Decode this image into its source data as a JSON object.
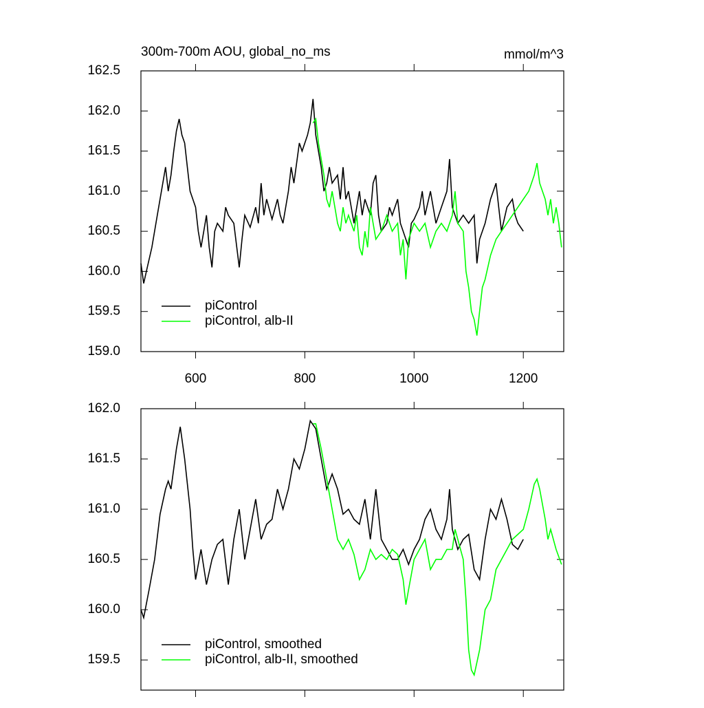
{
  "chart_data": [
    {
      "type": "line",
      "title": "300m-700m AOU, global_no_ms",
      "units": "mmol/m^3",
      "xlim": [
        500,
        1274
      ],
      "xticks": [
        600,
        800,
        1000,
        1200
      ],
      "xtick_labels": true,
      "ylim": [
        159.0,
        162.5
      ],
      "yticks": [
        {
          "value": 159.0,
          "label": "159.0"
        },
        159.5,
        {
          "value": 160.0,
          "label": "160.0"
        },
        160.5,
        {
          "value": 161.0,
          "label": "161.0"
        },
        161.5,
        {
          "value": 162.0,
          "label": "162.0"
        },
        162.5
      ],
      "legend": "lower left",
      "series": [
        {
          "name": "piControl",
          "color": "#000000",
          "x": [
            500,
            505,
            510,
            520,
            530,
            540,
            545,
            550,
            555,
            560,
            565,
            570,
            575,
            580,
            585,
            590,
            595,
            600,
            605,
            610,
            615,
            620,
            625,
            630,
            635,
            640,
            650,
            655,
            660,
            670,
            680,
            685,
            690,
            700,
            710,
            715,
            720,
            725,
            730,
            740,
            750,
            755,
            760,
            770,
            775,
            780,
            790,
            795,
            800,
            805,
            810,
            815,
            820,
            825,
            830,
            835,
            840,
            845,
            850,
            860,
            865,
            870,
            875,
            880,
            890,
            895,
            900,
            905,
            910,
            920,
            925,
            930,
            935,
            940,
            950,
            955,
            960,
            970,
            975,
            980,
            990,
            995,
            1000,
            1010,
            1015,
            1020,
            1030,
            1040,
            1050,
            1060,
            1065,
            1070,
            1080,
            1090,
            1100,
            1110,
            1115,
            1120,
            1130,
            1140,
            1150,
            1155,
            1160,
            1170,
            1180,
            1185,
            1190,
            1200
          ],
          "values": [
            160.1,
            159.85,
            160.0,
            160.3,
            160.7,
            161.1,
            161.3,
            161.0,
            161.2,
            161.5,
            161.75,
            161.9,
            161.7,
            161.6,
            161.3,
            161.0,
            160.9,
            160.8,
            160.5,
            160.3,
            160.5,
            160.7,
            160.3,
            160.05,
            160.5,
            160.6,
            160.5,
            160.8,
            160.7,
            160.6,
            160.05,
            160.4,
            160.7,
            160.55,
            160.8,
            160.6,
            161.1,
            160.7,
            160.9,
            160.65,
            160.9,
            160.7,
            160.6,
            161.0,
            161.3,
            161.1,
            161.6,
            161.5,
            161.6,
            161.7,
            161.85,
            162.15,
            161.7,
            161.5,
            161.3,
            161.0,
            161.1,
            161.3,
            161.1,
            161.2,
            160.9,
            161.3,
            160.9,
            161.0,
            160.6,
            160.8,
            161.0,
            160.7,
            160.9,
            160.7,
            161.1,
            161.2,
            160.7,
            160.5,
            160.6,
            160.8,
            160.7,
            160.9,
            160.6,
            160.5,
            160.3,
            160.6,
            160.65,
            160.8,
            161.0,
            160.7,
            161.0,
            160.6,
            160.8,
            161.0,
            161.4,
            160.8,
            160.6,
            160.7,
            160.6,
            160.7,
            160.1,
            160.4,
            160.6,
            160.9,
            161.1,
            160.8,
            160.5,
            160.8,
            160.9,
            160.7,
            160.6,
            160.5
          ]
        },
        {
          "name": "piControl, alb-II",
          "color": "#00ff00",
          "x": [
            815,
            820,
            825,
            830,
            835,
            840,
            845,
            850,
            855,
            860,
            865,
            870,
            875,
            880,
            890,
            895,
            900,
            905,
            910,
            915,
            920,
            925,
            930,
            940,
            950,
            960,
            970,
            975,
            980,
            985,
            990,
            1000,
            1010,
            1020,
            1030,
            1040,
            1050,
            1060,
            1070,
            1075,
            1080,
            1090,
            1095,
            1100,
            1105,
            1110,
            1115,
            1120,
            1125,
            1130,
            1140,
            1150,
            1160,
            1170,
            1180,
            1190,
            1200,
            1210,
            1215,
            1220,
            1225,
            1230,
            1240,
            1245,
            1250,
            1255,
            1260,
            1265,
            1270
          ],
          "values": [
            161.85,
            161.9,
            161.6,
            161.4,
            161.2,
            160.9,
            160.8,
            161.0,
            160.8,
            160.6,
            160.5,
            160.8,
            160.6,
            160.7,
            160.5,
            160.7,
            160.3,
            160.2,
            160.5,
            160.3,
            160.8,
            160.6,
            160.4,
            160.5,
            160.7,
            160.5,
            160.6,
            160.2,
            160.4,
            159.9,
            160.4,
            160.6,
            160.5,
            160.6,
            160.3,
            160.5,
            160.6,
            160.5,
            160.7,
            161.0,
            160.6,
            160.5,
            160.0,
            159.8,
            159.5,
            159.4,
            159.2,
            159.5,
            159.8,
            159.9,
            160.2,
            160.4,
            160.5,
            160.6,
            160.7,
            160.8,
            160.9,
            161.0,
            161.1,
            161.2,
            161.35,
            161.1,
            160.9,
            160.7,
            160.9,
            160.6,
            160.8,
            160.6,
            160.3
          ]
        }
      ]
    },
    {
      "type": "line",
      "xlim": [
        500,
        1274
      ],
      "xticks": [
        600,
        800,
        1000,
        1200
      ],
      "xtick_labels": false,
      "ylim": [
        159.2,
        162.0
      ],
      "yticks": [
        159.5,
        {
          "value": 160.0,
          "label": "160.0"
        },
        160.5,
        {
          "value": 161.0,
          "label": "161.0"
        },
        161.5,
        {
          "value": 162.0,
          "label": "162.0"
        }
      ],
      "legend": "lower left",
      "series": [
        {
          "name": "piControl, smoothed",
          "color": "#000000",
          "x": [
            500,
            505,
            515,
            525,
            535,
            545,
            550,
            555,
            565,
            572,
            580,
            590,
            595,
            600,
            610,
            620,
            630,
            640,
            650,
            660,
            670,
            680,
            690,
            700,
            710,
            720,
            730,
            740,
            750,
            760,
            770,
            780,
            790,
            800,
            810,
            820,
            830,
            840,
            850,
            860,
            870,
            880,
            890,
            900,
            910,
            920,
            930,
            940,
            950,
            960,
            970,
            980,
            990,
            1000,
            1010,
            1020,
            1030,
            1040,
            1050,
            1060,
            1065,
            1070,
            1080,
            1090,
            1100,
            1110,
            1120,
            1130,
            1140,
            1150,
            1160,
            1170,
            1180,
            1190,
            1200
          ],
          "values": [
            160.0,
            159.92,
            160.2,
            160.5,
            160.95,
            161.2,
            161.28,
            161.2,
            161.6,
            161.82,
            161.5,
            161.0,
            160.6,
            160.3,
            160.6,
            160.25,
            160.5,
            160.65,
            160.7,
            160.25,
            160.7,
            161.0,
            160.5,
            160.8,
            161.1,
            160.7,
            160.85,
            160.9,
            161.2,
            161.0,
            161.2,
            161.5,
            161.4,
            161.6,
            161.88,
            161.8,
            161.5,
            161.2,
            161.35,
            161.2,
            160.95,
            161.0,
            160.9,
            160.85,
            161.1,
            160.7,
            161.2,
            160.7,
            160.6,
            160.5,
            160.5,
            160.6,
            160.45,
            160.6,
            160.7,
            160.9,
            161.0,
            160.8,
            160.7,
            160.9,
            161.2,
            160.8,
            160.6,
            160.7,
            160.75,
            160.4,
            160.3,
            160.7,
            161.0,
            160.9,
            161.1,
            160.9,
            160.65,
            160.6,
            160.7
          ]
        },
        {
          "name": "piControl, alb-II, smoothed",
          "color": "#00ff00",
          "x": [
            815,
            820,
            830,
            840,
            850,
            860,
            870,
            880,
            890,
            900,
            910,
            920,
            930,
            940,
            950,
            960,
            970,
            980,
            985,
            990,
            1000,
            1010,
            1020,
            1030,
            1040,
            1050,
            1060,
            1070,
            1075,
            1080,
            1090,
            1095,
            1100,
            1105,
            1110,
            1120,
            1130,
            1140,
            1150,
            1160,
            1170,
            1180,
            1190,
            1200,
            1210,
            1220,
            1225,
            1230,
            1240,
            1245,
            1250,
            1260,
            1270
          ],
          "values": [
            161.85,
            161.85,
            161.6,
            161.3,
            161.0,
            160.7,
            160.6,
            160.7,
            160.55,
            160.3,
            160.4,
            160.6,
            160.5,
            160.55,
            160.5,
            160.6,
            160.55,
            160.3,
            160.05,
            160.2,
            160.5,
            160.6,
            160.7,
            160.4,
            160.5,
            160.5,
            160.6,
            160.6,
            160.8,
            160.7,
            160.5,
            160.1,
            159.6,
            159.4,
            159.35,
            159.6,
            160.0,
            160.1,
            160.4,
            160.5,
            160.6,
            160.7,
            160.75,
            160.8,
            161.0,
            161.25,
            161.3,
            161.2,
            160.9,
            160.7,
            160.8,
            160.6,
            160.45
          ]
        }
      ]
    }
  ]
}
